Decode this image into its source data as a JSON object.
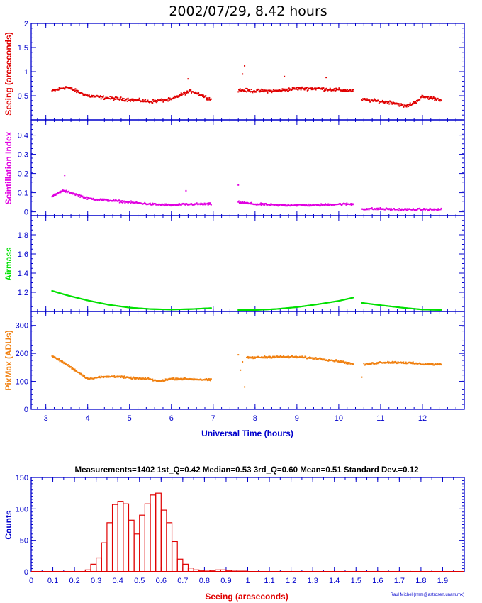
{
  "title": "2002/07/29, 8.42 hours",
  "colors": {
    "frame": "#0000cc",
    "seeing": "#e00000",
    "scint": "#e000e0",
    "airmass": "#00e000",
    "pixmax": "#f08010",
    "hist": "#e00000",
    "label_blue": "#0000cc"
  },
  "chart_data": [
    {
      "type": "scatter",
      "ylabel": "Seeing (arcseconds)",
      "ylim": [
        0,
        2
      ],
      "yticks": [
        "0.5",
        "1",
        "1.5",
        "2"
      ],
      "xlim": [
        2.65,
        13.0
      ],
      "segments": [
        {
          "x": [
            3.15,
            3.5,
            4.0,
            4.5,
            5.0,
            5.5,
            6.0,
            6.3,
            6.5,
            6.95
          ],
          "y": [
            0.6,
            0.68,
            0.5,
            0.45,
            0.42,
            0.38,
            0.42,
            0.55,
            0.6,
            0.42
          ]
        },
        {
          "x": [
            7.6,
            8.0,
            8.5,
            9.0,
            9.5,
            10.0,
            10.35
          ],
          "y": [
            0.62,
            0.6,
            0.6,
            0.65,
            0.65,
            0.62,
            0.6
          ]
        },
        {
          "x": [
            10.55,
            11.0,
            11.3,
            11.6,
            11.8,
            12.0,
            12.45
          ],
          "y": [
            0.42,
            0.38,
            0.36,
            0.28,
            0.35,
            0.48,
            0.42
          ]
        }
      ],
      "outliers": [
        [
          7.75,
          1.12
        ],
        [
          7.7,
          0.95
        ],
        [
          6.4,
          0.85
        ],
        [
          8.7,
          0.9
        ],
        [
          9.7,
          0.88
        ]
      ]
    },
    {
      "type": "scatter",
      "ylabel": "Scintillation Index",
      "ylim": [
        -0.02,
        0.48
      ],
      "yticks": [
        "0",
        "0.1",
        "0.2",
        "0.3",
        "0.4"
      ],
      "xlim": [
        2.65,
        13.0
      ],
      "segments": [
        {
          "x": [
            3.15,
            3.4,
            3.6,
            4.0,
            4.5,
            5.0,
            5.5,
            6.0,
            6.5,
            6.95
          ],
          "y": [
            0.08,
            0.11,
            0.1,
            0.07,
            0.06,
            0.05,
            0.04,
            0.035,
            0.04,
            0.04
          ]
        },
        {
          "x": [
            7.6,
            8.0,
            8.5,
            9.0,
            9.5,
            10.0,
            10.35
          ],
          "y": [
            0.05,
            0.04,
            0.035,
            0.035,
            0.035,
            0.04,
            0.04
          ]
        },
        {
          "x": [
            10.55,
            11.0,
            11.5,
            12.0,
            12.45
          ],
          "y": [
            0.015,
            0.015,
            0.012,
            0.012,
            0.012
          ]
        }
      ],
      "outliers": [
        [
          3.45,
          0.19
        ],
        [
          7.6,
          0.14
        ],
        [
          6.35,
          0.11
        ]
      ]
    },
    {
      "type": "scatter",
      "ylabel": "Airmass",
      "ylim": [
        1.0,
        2.0
      ],
      "yticks": [
        "1.2",
        "1.4",
        "1.6",
        "1.8"
      ],
      "xlim": [
        2.65,
        13.0
      ],
      "segments": [
        {
          "x": [
            3.15,
            3.5,
            4.0,
            4.5,
            5.0,
            5.5,
            6.0,
            6.5,
            6.95
          ],
          "y": [
            1.215,
            1.17,
            1.115,
            1.07,
            1.04,
            1.025,
            1.02,
            1.025,
            1.035
          ]
        },
        {
          "x": [
            7.6,
            8.0,
            8.5,
            9.0,
            9.5,
            10.0,
            10.35
          ],
          "y": [
            1.015,
            1.015,
            1.025,
            1.045,
            1.075,
            1.11,
            1.145
          ]
        },
        {
          "x": [
            10.55,
            11.0,
            11.5,
            12.0,
            12.45
          ],
          "y": [
            1.09,
            1.065,
            1.04,
            1.02,
            1.015
          ]
        }
      ],
      "outliers": []
    },
    {
      "type": "scatter",
      "ylabel": "PixMax (ADUs)",
      "ylim": [
        0,
        350
      ],
      "yticks": [
        "0",
        "100",
        "200",
        "300"
      ],
      "xlim": [
        2.65,
        13.0
      ],
      "xticks": [
        "3",
        "4",
        "5",
        "6",
        "7",
        "8",
        "9",
        "10",
        "11",
        "12"
      ],
      "xlabel": "Universal Time (hours)",
      "segments": [
        {
          "x": [
            3.15,
            3.4,
            3.7,
            4.0,
            4.3,
            4.7,
            5.0,
            5.5,
            5.7,
            6.0,
            6.5,
            6.95
          ],
          "y": [
            190,
            170,
            140,
            110,
            115,
            118,
            112,
            108,
            100,
            110,
            108,
            105
          ]
        },
        {
          "x": [
            7.8,
            8.0,
            8.5,
            9.0,
            9.5,
            10.0,
            10.35
          ],
          "y": [
            185,
            185,
            188,
            187,
            182,
            172,
            162
          ]
        },
        {
          "x": [
            10.6,
            11.0,
            11.5,
            12.0,
            12.45
          ],
          "y": [
            160,
            168,
            168,
            162,
            160
          ]
        }
      ],
      "outliers": [
        [
          7.6,
          195
        ],
        [
          7.7,
          170
        ],
        [
          7.65,
          140
        ],
        [
          7.75,
          80
        ],
        [
          10.55,
          115
        ]
      ]
    },
    {
      "type": "bar",
      "xlabel": "Seeing (arcseconds)",
      "ylabel": "Counts",
      "ylim": [
        0,
        150
      ],
      "yticks": [
        "0",
        "50",
        "100",
        "150"
      ],
      "xlim": [
        0,
        2.0
      ],
      "xticks": [
        "0",
        "0.1",
        "0.2",
        "0.3",
        "0.4",
        "0.5",
        "0.6",
        "0.7",
        "0.8",
        "0.9",
        "1",
        "1.1",
        "1.2",
        "1.3",
        "1.4",
        "1.5",
        "1.6",
        "1.7",
        "1.8",
        "1.9"
      ],
      "bin_width": 0.025,
      "bin_start": 0.25,
      "values": [
        3,
        12,
        22,
        46,
        78,
        107,
        112,
        108,
        82,
        60,
        90,
        108,
        122,
        125,
        98,
        78,
        48,
        20,
        12,
        6,
        3,
        2,
        1,
        2,
        3,
        3,
        2,
        1,
        1,
        1
      ],
      "stats": "Measurements=1402   1st_Q=0.42   Median=0.53   3rd_Q=0.60   Mean=0.51   Standard Dev.=0.12",
      "credit": "Raul Michel (rmm@astrosen.unam.mx)"
    }
  ]
}
